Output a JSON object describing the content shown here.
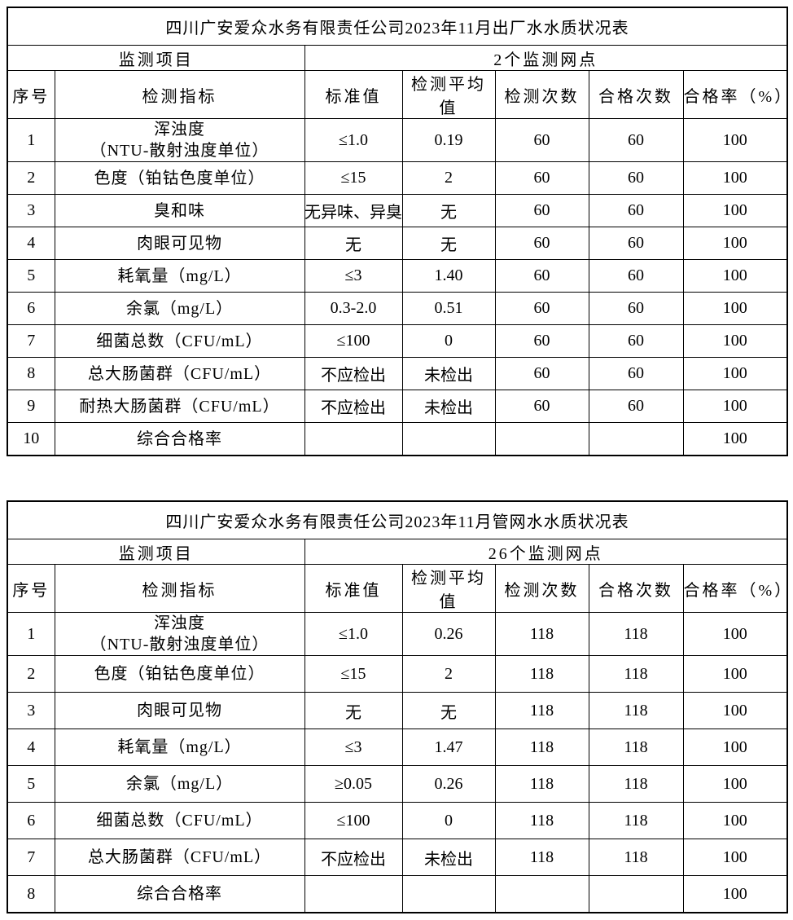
{
  "colors": {
    "background": "#ffffff",
    "border": "#000000",
    "text": "#000000"
  },
  "tables": [
    {
      "title": "四川广安爱众水务有限责任公司2023年11月出厂水水质状况表",
      "monitor_label": "监测项目",
      "monitor_points": "2个监测网点",
      "columns": [
        "序号",
        "检测指标",
        "标准值",
        "检测平均值",
        "检测次数",
        "合格次数",
        "合格率（%）"
      ],
      "rows": [
        {
          "no": "1",
          "indicator": "浑浊度",
          "indicator2": "（NTU-散射浊度单位）",
          "standard": "≤1.0",
          "average": "0.19",
          "tests": "60",
          "passed": "60",
          "rate": "100"
        },
        {
          "no": "2",
          "indicator": "色度（铂钴色度单位）",
          "standard": "≤15",
          "average": "2",
          "tests": "60",
          "passed": "60",
          "rate": "100"
        },
        {
          "no": "3",
          "indicator": "臭和味",
          "standard": "无异味、异臭",
          "clip": true,
          "average": "无",
          "tests": "60",
          "passed": "60",
          "rate": "100"
        },
        {
          "no": "4",
          "indicator": "肉眼可见物",
          "standard": "无",
          "average": "无",
          "tests": "60",
          "passed": "60",
          "rate": "100"
        },
        {
          "no": "5",
          "indicator": "耗氧量（mg/L）",
          "standard": "≤3",
          "average": "1.40",
          "tests": "60",
          "passed": "60",
          "rate": "100"
        },
        {
          "no": "6",
          "indicator": "余氯（mg/L）",
          "standard": "0.3-2.0",
          "average": "0.51",
          "tests": "60",
          "passed": "60",
          "rate": "100"
        },
        {
          "no": "7",
          "indicator": "细菌总数（CFU/mL）",
          "standard": "≤100",
          "average": "0",
          "tests": "60",
          "passed": "60",
          "rate": "100"
        },
        {
          "no": "8",
          "indicator": "总大肠菌群（CFU/mL）",
          "standard": "不应检出",
          "average": "未检出",
          "tests": "60",
          "passed": "60",
          "rate": "100"
        },
        {
          "no": "9",
          "indicator": "耐热大肠菌群（CFU/mL）",
          "standard": "不应检出",
          "average": "未检出",
          "tests": "60",
          "passed": "60",
          "rate": "100"
        },
        {
          "no": "10",
          "indicator": "综合合格率",
          "standard": "",
          "average": "",
          "tests": "",
          "passed": "",
          "rate": "100"
        }
      ]
    },
    {
      "title": "四川广安爱众水务有限责任公司2023年11月管网水水质状况表",
      "monitor_label": "监测项目",
      "monitor_points": "26个监测网点",
      "columns": [
        "序号",
        "检测指标",
        "标准值",
        "检测平均值",
        "检测次数",
        "合格次数",
        "合格率（%）"
      ],
      "rows": [
        {
          "no": "1",
          "indicator": "浑浊度",
          "indicator2": "（NTU-散射浊度单位）",
          "standard": "≤1.0",
          "average": "0.26",
          "tests": "118",
          "passed": "118",
          "rate": "100"
        },
        {
          "no": "2",
          "indicator": "色度（铂钴色度单位）",
          "standard": "≤15",
          "average": "2",
          "tests": "118",
          "passed": "118",
          "rate": "100"
        },
        {
          "no": "3",
          "indicator": "肉眼可见物",
          "standard": "无",
          "average": "无",
          "tests": "118",
          "passed": "118",
          "rate": "100"
        },
        {
          "no": "4",
          "indicator": "耗氧量（mg/L）",
          "standard": "≤3",
          "average": "1.47",
          "tests": "118",
          "passed": "118",
          "rate": "100"
        },
        {
          "no": "5",
          "indicator": "余氯（mg/L）",
          "standard": "≥0.05",
          "average": "0.26",
          "tests": "118",
          "passed": "118",
          "rate": "100"
        },
        {
          "no": "6",
          "indicator": "细菌总数（CFU/mL）",
          "standard": "≤100",
          "average": "0",
          "tests": "118",
          "passed": "118",
          "rate": "100"
        },
        {
          "no": "7",
          "indicator": "总大肠菌群（CFU/mL）",
          "standard": "不应检出",
          "average": "未检出",
          "tests": "118",
          "passed": "118",
          "rate": "100"
        },
        {
          "no": "8",
          "indicator": "综合合格率",
          "standard": "",
          "average": "",
          "tests": "",
          "passed": "",
          "rate": "100"
        }
      ]
    }
  ]
}
